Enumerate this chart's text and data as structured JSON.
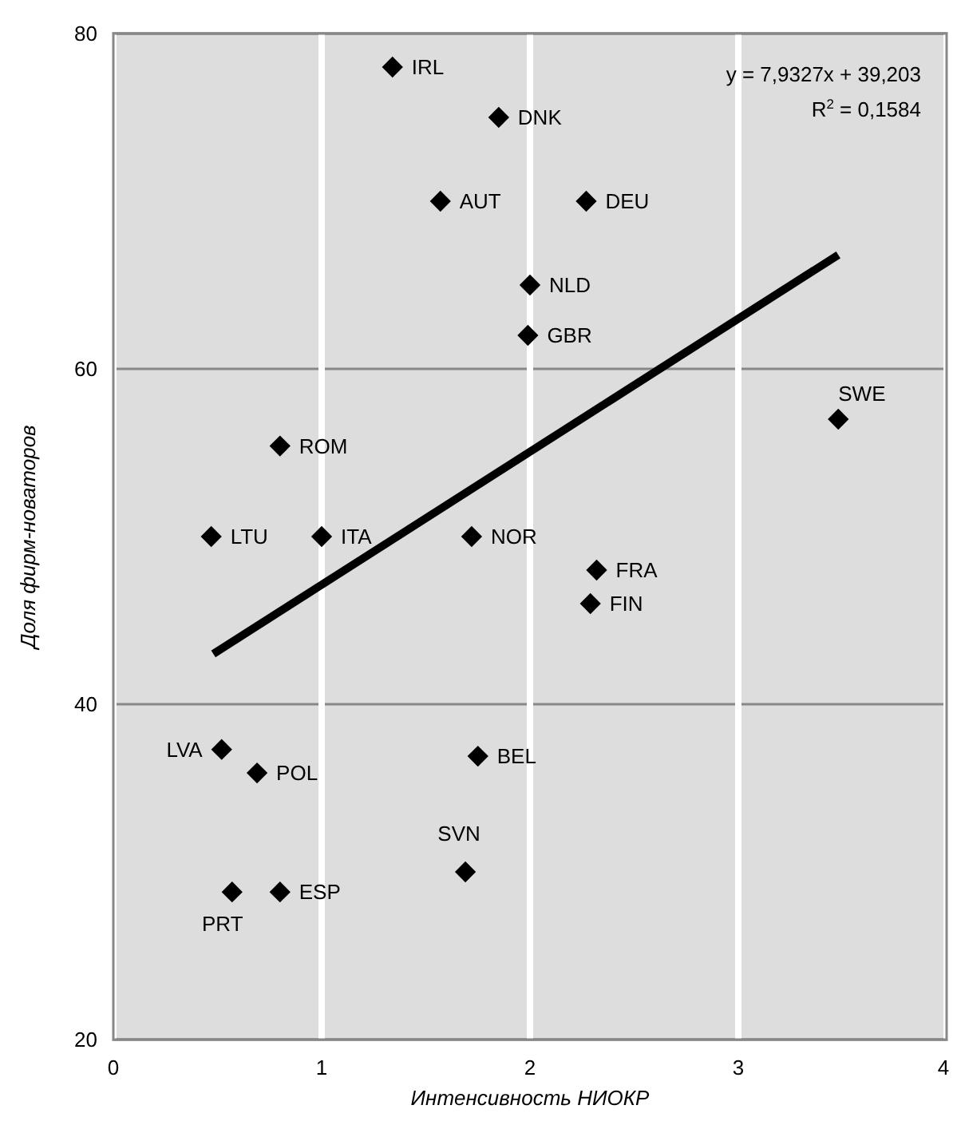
{
  "chart_data": {
    "type": "scatter",
    "xlabel": "Интенсивность НИОКР",
    "ylabel": "Доля фирм-новаторов",
    "xlim": [
      0,
      4
    ],
    "xticks": [
      0,
      1,
      2,
      3,
      4
    ],
    "ylim": [
      20,
      80
    ],
    "yticks": [
      20,
      40,
      60,
      80
    ],
    "grid": true,
    "annotations": [
      "y = 7,9327x + 39,203",
      "R$^{2}$ = 0,1584"
    ],
    "series": [
      {
        "color": "#000000",
        "marker": "diamond",
        "x": [
          1.34,
          1.85,
          1.57,
          2.27,
          2.0,
          1.99,
          3.48,
          0.8,
          0.47,
          1.0,
          1.72,
          2.32,
          2.29,
          0.52,
          0.69,
          1.75,
          1.69,
          0.57,
          0.8
        ],
        "values": [
          78,
          75,
          70,
          70,
          65,
          62,
          57,
          55.4,
          50,
          50,
          50,
          48,
          46,
          37.3,
          35.9,
          36.9,
          30,
          28.8,
          28.8
        ],
        "value_labels": [
          "IRL",
          "DNK",
          "AUT",
          "DEU",
          "NLD",
          "GBR",
          "SWE",
          "ROM",
          "LTU",
          "ITA",
          "NOR",
          "FRA",
          "FIN",
          "LVA",
          "POL",
          "BEL",
          "SVN",
          "PRT",
          "ESP"
        ]
      },
      {
        "type": "line",
        "color": "#000000",
        "line_style": "solid",
        "x": [
          0.48,
          3.48
        ],
        "values": [
          43.0,
          66.8
        ]
      }
    ]
  }
}
